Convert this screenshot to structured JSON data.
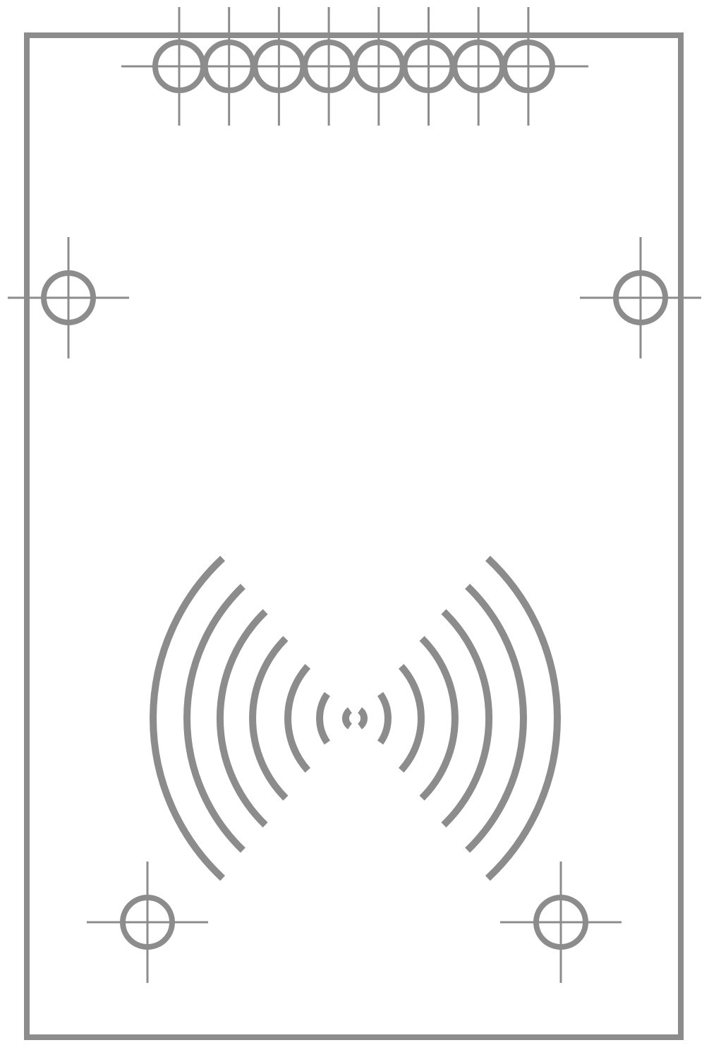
{
  "diagram": {
    "kind": "pcb-silkscreen-footprint",
    "stroke_color": "#8c8c8c",
    "background_color": "#ffffff",
    "header": {
      "pin_count": 8,
      "icon": "pin-header-icon"
    },
    "mounting_holes": {
      "count": 4,
      "icon": "crosshair-circle-icon"
    },
    "antenna_symbol": {
      "icon": "rfid-wave-icon",
      "arcs_per_side": 7
    }
  }
}
